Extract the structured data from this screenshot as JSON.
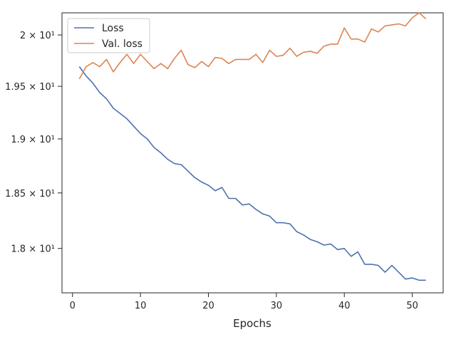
{
  "chart_data": {
    "type": "line",
    "title": "",
    "xlabel": "Epochs",
    "ylabel": "",
    "xlim": [
      -1.55,
      54.55
    ],
    "ylim": [
      17.61,
      20.22
    ],
    "xticks": [
      0,
      10,
      20,
      30,
      40,
      50
    ],
    "xtick_labels": [
      "0",
      "10",
      "20",
      "30",
      "40",
      "50"
    ],
    "yticks": [
      18.0,
      18.5,
      19.0,
      19.5,
      20.0
    ],
    "ytick_labels": [
      "1.8 × 10¹",
      "1.85 × 10¹",
      "1.9 × 10¹",
      "1.95 × 10¹",
      "2 × 10¹"
    ],
    "yscale": "log",
    "grid": false,
    "legend_position": "top-left",
    "x": [
      1,
      2,
      3,
      4,
      5,
      6,
      7,
      8,
      9,
      10,
      11,
      12,
      13,
      14,
      15,
      16,
      17,
      18,
      19,
      20,
      21,
      22,
      23,
      24,
      25,
      26,
      27,
      28,
      29,
      30,
      31,
      32,
      33,
      34,
      35,
      36,
      37,
      38,
      39,
      40,
      41,
      42,
      43,
      44,
      45,
      46,
      47,
      48,
      49,
      50,
      51,
      52
    ],
    "series": [
      {
        "name": "Loss",
        "color": "#4c72b0",
        "values": [
          19.69,
          19.6,
          19.53,
          19.44,
          19.38,
          19.29,
          19.24,
          19.19,
          19.12,
          19.05,
          19.0,
          18.92,
          18.87,
          18.81,
          18.77,
          18.76,
          18.7,
          18.64,
          18.6,
          18.57,
          18.52,
          18.55,
          18.45,
          18.45,
          18.39,
          18.4,
          18.35,
          18.31,
          18.29,
          18.23,
          18.23,
          18.22,
          18.15,
          18.12,
          18.08,
          18.06,
          18.03,
          18.04,
          17.99,
          18.0,
          17.93,
          17.97,
          17.86,
          17.86,
          17.85,
          17.79,
          17.85,
          17.79,
          17.73,
          17.74,
          17.72,
          17.72
        ]
      },
      {
        "name": "Val. loss",
        "color": "#dd8452",
        "values": [
          19.57,
          19.69,
          19.73,
          19.69,
          19.76,
          19.64,
          19.73,
          19.81,
          19.72,
          19.81,
          19.74,
          19.67,
          19.72,
          19.67,
          19.77,
          19.85,
          19.71,
          19.68,
          19.74,
          19.69,
          19.78,
          19.77,
          19.72,
          19.76,
          19.76,
          19.76,
          19.81,
          19.73,
          19.85,
          19.79,
          19.8,
          19.87,
          19.79,
          19.83,
          19.84,
          19.82,
          19.89,
          19.91,
          19.91,
          20.07,
          19.96,
          19.96,
          19.93,
          20.06,
          20.03,
          20.09,
          20.1,
          20.11,
          20.09,
          20.17,
          20.22,
          20.16
        ]
      }
    ]
  }
}
